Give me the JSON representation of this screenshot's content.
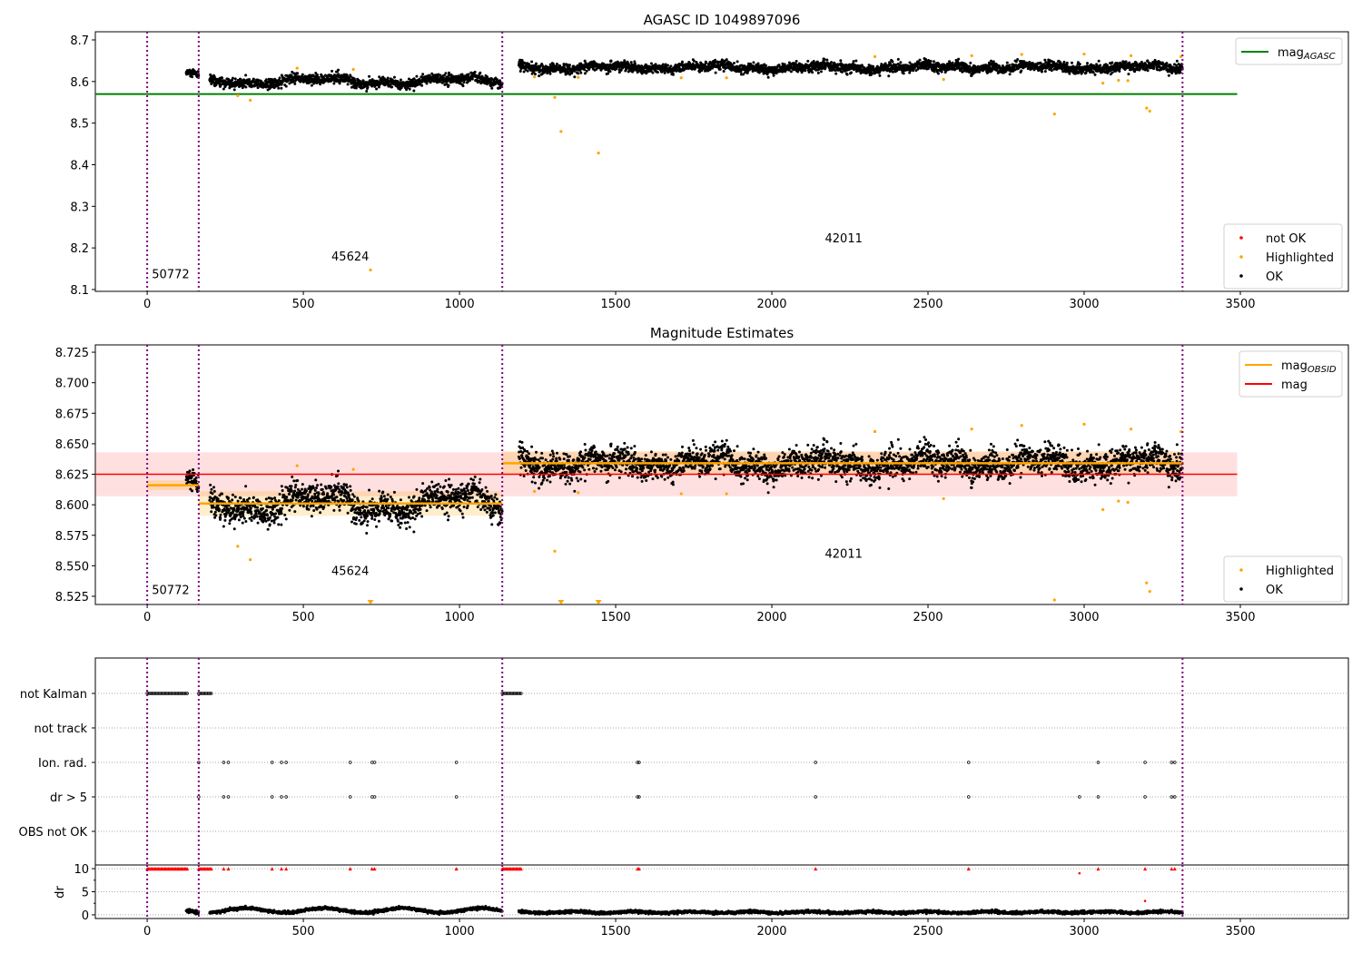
{
  "chart_data": [
    {
      "type": "scatter",
      "title": "AGASC ID 1049897096",
      "xlim": [
        -166,
        3846
      ],
      "ylim": [
        8.0956,
        8.7196
      ],
      "xticks": [
        0,
        500,
        1000,
        1500,
        2000,
        2500,
        3000,
        3500
      ],
      "yticks": [
        "8.1",
        "8.2",
        "8.3",
        "8.4",
        "8.5",
        "8.6",
        "8.7"
      ],
      "mag_agasc": 8.57,
      "mag_agasc_xrange": [
        -166,
        3490
      ],
      "obsid_boundaries": [
        0,
        165,
        1137,
        3315
      ],
      "obsid_labels": [
        {
          "text": "50772",
          "x": 15,
          "y": 8.127
        },
        {
          "text": "45624",
          "x": 590,
          "y": 8.17
        },
        {
          "text": "42011",
          "x": 2170,
          "y": 8.213
        }
      ],
      "legend_top": [
        {
          "label": "mag",
          "sub": "AGASC",
          "color": "#008000"
        }
      ],
      "legend_bottom": [
        {
          "label": "not OK",
          "color": "#ff0000"
        },
        {
          "label": "Highlighted",
          "color": "#ffa500"
        },
        {
          "label": "OK",
          "color": "#000000"
        }
      ]
    },
    {
      "type": "scatter",
      "title": "Magnitude Estimates",
      "xlim": [
        -166,
        3846
      ],
      "ylim": [
        8.5183,
        8.731
      ],
      "xticks": [
        0,
        500,
        1000,
        1500,
        2000,
        2500,
        3000,
        3500
      ],
      "yticks": [
        "8.525",
        "8.550",
        "8.575",
        "8.600",
        "8.625",
        "8.650",
        "8.675",
        "8.700",
        "8.725"
      ],
      "mag": 8.625,
      "mag_band": [
        8.607,
        8.643
      ],
      "mag_xrange": [
        -166,
        3490
      ],
      "mag_obsid": [
        {
          "x0": 0,
          "x1": 165,
          "mag": 8.616,
          "band": [
            8.612,
            8.62
          ]
        },
        {
          "x0": 165,
          "x1": 1137,
          "mag": 8.601,
          "band": [
            8.591,
            8.611
          ]
        },
        {
          "x0": 1137,
          "x1": 3315,
          "mag": 8.634,
          "band": [
            8.625,
            8.644
          ]
        }
      ],
      "obsid_labels": [
        {
          "text": "50772",
          "x": 15,
          "y": 8.527
        },
        {
          "text": "45624",
          "x": 590,
          "y": 8.5425
        },
        {
          "text": "42011",
          "x": 2170,
          "y": 8.5565
        }
      ],
      "legend_top": [
        {
          "label": "mag",
          "sub": "OBSID",
          "color": "#ffa500"
        },
        {
          "label": "mag",
          "sub": "",
          "color": "#ff0000"
        }
      ],
      "legend_bottom": [
        {
          "label": "Highlighted",
          "color": "#ffa500"
        },
        {
          "label": "OK",
          "color": "#000000"
        }
      ]
    },
    {
      "type": "scatter",
      "title": "",
      "xlim": [
        -166,
        3846
      ],
      "flag_categories": [
        "not Kalman",
        "not track",
        "Ion. rad.",
        "dr > 5",
        "OBS not OK"
      ],
      "flags": {
        "not Kalman": [
          [
            0,
            130
          ],
          [
            165,
            205
          ],
          [
            1137,
            1200
          ]
        ],
        "not track": [],
        "Ion. rad.": [
          165,
          245,
          260,
          400,
          430,
          445,
          650,
          720,
          728,
          990,
          1570,
          1575,
          2140,
          2630,
          3045,
          3195,
          3280,
          3290
        ],
        "dr > 5": [
          165,
          245,
          260,
          400,
          430,
          445,
          650,
          720,
          728,
          990,
          1570,
          1575,
          2140,
          2630,
          2985,
          3045,
          3195,
          3280,
          3290
        ],
        "OBS not OK": []
      },
      "dr_ylabel": "dr",
      "dr_ylim": [
        -0.8,
        10.8
      ],
      "dr_yticks": [
        "0",
        "5",
        "10"
      ],
      "dr_clipped_red_x": [
        [
          0,
          130
        ],
        [
          165,
          205
        ],
        245,
        260,
        400,
        430,
        445,
        650,
        720,
        728,
        990,
        [
          1137,
          1200
        ],
        1570,
        1575,
        2140,
        2630,
        3045,
        3195,
        3280,
        3290
      ],
      "dr_red_points": [
        {
          "x": 2985,
          "y": 9.0
        },
        {
          "x": 3195,
          "y": 3.0
        }
      ],
      "xticks": [
        0,
        500,
        1000,
        1500,
        2000,
        2500,
        3000,
        3500
      ]
    }
  ],
  "series": {
    "segments": [
      {
        "obsid": "50772",
        "x0": 125,
        "x1": 165,
        "mean": 8.615,
        "noise": 0.005
      },
      {
        "obsid": "45624",
        "x0": 200,
        "x1": 1137,
        "mean": 8.601,
        "noise": 0.006
      },
      {
        "obsid": "42011",
        "x0": 1190,
        "x1": 3315,
        "mean": 8.634,
        "noise": 0.006
      }
    ],
    "highlighted": [
      [
        290,
        8.566
      ],
      [
        330,
        8.555
      ],
      [
        480,
        8.632
      ],
      [
        660,
        8.629
      ],
      [
        715,
        8.147
      ],
      [
        1240,
        8.611
      ],
      [
        1305,
        8.562
      ],
      [
        1325,
        8.48
      ],
      [
        1380,
        8.61
      ],
      [
        1445,
        8.428
      ],
      [
        1710,
        8.609
      ],
      [
        1855,
        8.609
      ],
      [
        2330,
        8.66
      ],
      [
        2550,
        8.605
      ],
      [
        2640,
        8.662
      ],
      [
        2800,
        8.665
      ],
      [
        2905,
        8.522
      ],
      [
        3000,
        8.666
      ],
      [
        3060,
        8.596
      ],
      [
        3110,
        8.603
      ],
      [
        3140,
        8.602
      ],
      [
        3150,
        8.662
      ],
      [
        3200,
        8.536
      ],
      [
        3210,
        8.529
      ],
      [
        3310,
        8.66
      ]
    ]
  }
}
